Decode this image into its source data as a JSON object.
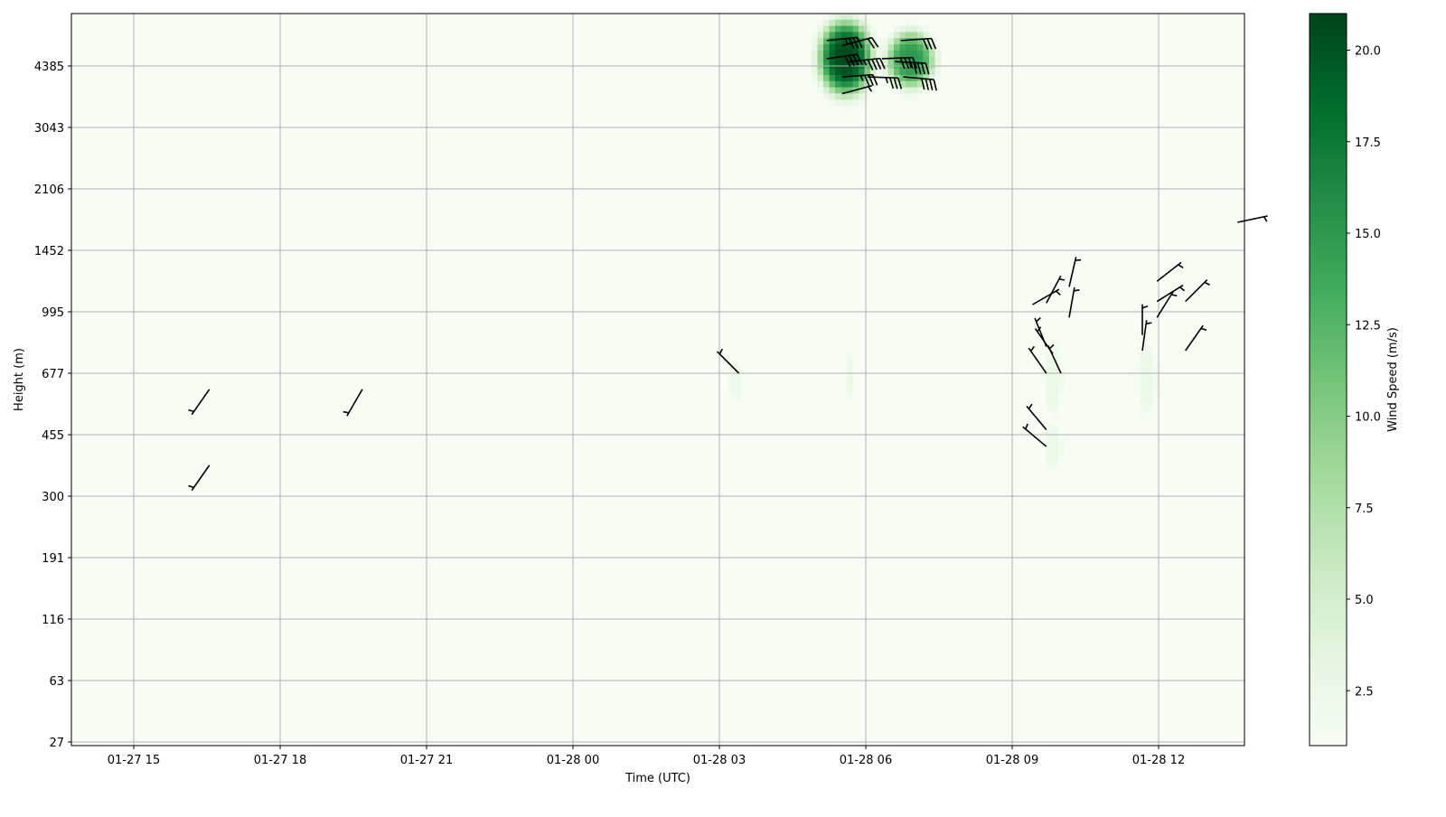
{
  "chart_data": {
    "type": "heatmap",
    "xlabel": "Time (UTC)",
    "ylabel": "Height (m)",
    "x_ticks": [
      "01-27 15",
      "01-27 18",
      "01-27 21",
      "01-28 00",
      "01-28 03",
      "01-28 06",
      "01-28 09",
      "01-28 12"
    ],
    "x_tick_hours": [
      15,
      18,
      21,
      24,
      27,
      30,
      33,
      36
    ],
    "xlim": [
      "01-27 13:43",
      "01-28 13:47"
    ],
    "y_ticks": [
      27,
      63,
      116,
      191,
      300,
      455,
      677,
      995,
      1452,
      2106,
      3043,
      4385
    ],
    "grid": true,
    "colorbar": {
      "label": "Wind Speed (m/s)",
      "colormap": "Greens",
      "range": [
        1.0,
        21.0
      ],
      "ticks": [
        "2.5",
        "5.0",
        "7.5",
        "10.0",
        "12.5",
        "15.0",
        "17.5",
        "20.0"
      ],
      "colors": [
        "#f7fcf5",
        "#e5f5e0",
        "#c7e9c0",
        "#a1d99b",
        "#74c476",
        "#41ab5d",
        "#238b45",
        "#006d2c",
        "#00441b"
      ]
    },
    "background_speed": 1.0,
    "wind_speed_features": [
      {
        "time": "01-28 05:35",
        "height_m": 4600,
        "peak_speed": 20.5,
        "spread_h": 0.45,
        "spread_z": 0.5
      },
      {
        "time": "01-28 06:55",
        "height_m": 4550,
        "peak_speed": 15.0,
        "spread_h": 0.4,
        "spread_z": 0.38
      },
      {
        "time": "01-28 09:50",
        "height_m": 650,
        "peak_speed": 2.5,
        "spread_h": 0.15,
        "spread_z": 0.5
      },
      {
        "time": "01-28 09:50",
        "height_m": 420,
        "peak_speed": 2.5,
        "spread_h": 0.15,
        "spread_z": 0.3
      },
      {
        "time": "01-28 11:45",
        "height_m": 650,
        "peak_speed": 2.5,
        "spread_h": 0.15,
        "spread_z": 0.5
      },
      {
        "time": "01-28 05:40",
        "height_m": 660,
        "peak_speed": 2.3,
        "spread_h": 0.08,
        "spread_z": 0.3
      },
      {
        "time": "01-28 03:20",
        "height_m": 640,
        "peak_speed": 2.2,
        "spread_h": 0.08,
        "spread_z": 0.3
      }
    ],
    "wind_barbs": [
      {
        "time": "01-27 16:33",
        "height_m": 610,
        "direction_deg": 215,
        "speed_kt": 5
      },
      {
        "time": "01-27 16:33",
        "height_m": 370,
        "direction_deg": 215,
        "speed_kt": 5
      },
      {
        "time": "01-27 19:41",
        "height_m": 610,
        "direction_deg": 210,
        "speed_kt": 5
      },
      {
        "time": "01-28 03:24",
        "height_m": 677,
        "direction_deg": 315,
        "speed_kt": 5
      },
      {
        "time": "01-28 09:42",
        "height_m": 470,
        "direction_deg": 320,
        "speed_kt": 5
      },
      {
        "time": "01-28 09:42",
        "height_m": 420,
        "direction_deg": 310,
        "speed_kt": 5
      },
      {
        "time": "01-28 09:42",
        "height_m": 677,
        "direction_deg": 325,
        "speed_kt": 5
      },
      {
        "time": "01-28 10:00",
        "height_m": 677,
        "direction_deg": 335,
        "speed_kt": 5
      },
      {
        "time": "01-28 09:50",
        "height_m": 765,
        "direction_deg": 325,
        "speed_kt": 5
      },
      {
        "time": "01-28 09:42",
        "height_m": 800,
        "direction_deg": 338,
        "speed_kt": 5
      },
      {
        "time": "01-28 09:25",
        "height_m": 1040,
        "direction_deg": 60,
        "speed_kt": 5
      },
      {
        "time": "01-28 09:42",
        "height_m": 1050,
        "direction_deg": 28,
        "speed_kt": 5
      },
      {
        "time": "01-28 10:10",
        "height_m": 1160,
        "direction_deg": 13,
        "speed_kt": 5
      },
      {
        "time": "01-28 10:10",
        "height_m": 960,
        "direction_deg": 10,
        "speed_kt": 5
      },
      {
        "time": "01-28 11:40",
        "height_m": 780,
        "direction_deg": 8,
        "speed_kt": 5
      },
      {
        "time": "01-28 11:40",
        "height_m": 860,
        "direction_deg": 0,
        "speed_kt": 5
      },
      {
        "time": "01-28 11:58",
        "height_m": 960,
        "direction_deg": 32,
        "speed_kt": 5
      },
      {
        "time": "01-28 11:58",
        "height_m": 1200,
        "direction_deg": 52,
        "speed_kt": 5
      },
      {
        "time": "01-28 11:58",
        "height_m": 1060,
        "direction_deg": 58,
        "speed_kt": 5
      },
      {
        "time": "01-28 12:33",
        "height_m": 1060,
        "direction_deg": 45,
        "speed_kt": 5
      },
      {
        "time": "01-28 12:33",
        "height_m": 780,
        "direction_deg": 35,
        "speed_kt": 5
      },
      {
        "time": "01-28 13:37",
        "height_m": 1720,
        "direction_deg": 78,
        "speed_kt": 5
      },
      {
        "time": "01-28 05:12",
        "height_m": 5100,
        "direction_deg": 84,
        "speed_kt": 35
      },
      {
        "time": "01-28 05:31",
        "height_m": 4950,
        "direction_deg": 75,
        "speed_kt": 20
      },
      {
        "time": "01-28 05:12",
        "height_m": 4580,
        "direction_deg": 82,
        "speed_kt": 40
      },
      {
        "time": "01-28 05:40",
        "height_m": 4500,
        "direction_deg": 84,
        "speed_kt": 45
      },
      {
        "time": "01-28 05:31",
        "height_m": 4110,
        "direction_deg": 86,
        "speed_kt": 35
      },
      {
        "time": "01-28 06:02",
        "height_m": 4110,
        "direction_deg": 92,
        "speed_kt": 35
      },
      {
        "time": "01-28 05:31",
        "height_m": 3720,
        "direction_deg": 75,
        "speed_kt": 5
      },
      {
        "time": "01-28 06:43",
        "height_m": 5100,
        "direction_deg": 86,
        "speed_kt": 30
      },
      {
        "time": "01-28 06:36",
        "height_m": 4500,
        "direction_deg": 93,
        "speed_kt": 45
      },
      {
        "time": "01-28 06:46",
        "height_m": 4110,
        "direction_deg": 95,
        "speed_kt": 40
      },
      {
        "time": "01-28 06:20",
        "height_m": 4580,
        "direction_deg": 88,
        "speed_kt": 40
      }
    ]
  }
}
